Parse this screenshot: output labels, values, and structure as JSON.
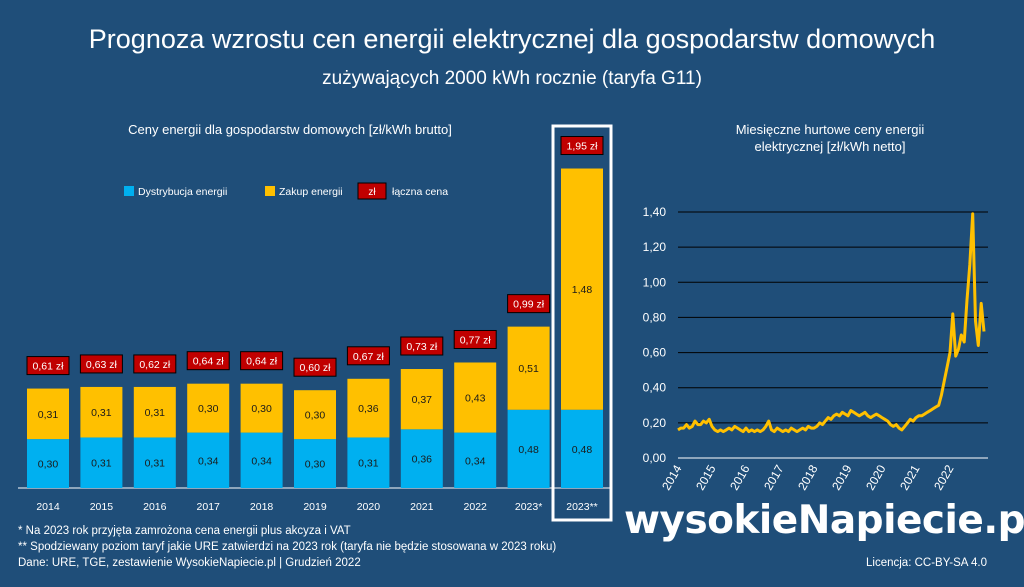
{
  "title": "Prognoza wzrostu cen energii elektrycznej dla gospodarstw domowych",
  "subtitle": "zużywających 2000 kWh rocznie (taryfa G11)",
  "colors": {
    "background": "#1f4e79",
    "distribution": "#00b0f0",
    "purchase": "#ffc000",
    "total_label_bg": "#c00000",
    "line": "#ffc000"
  },
  "chart_data": [
    {
      "type": "bar",
      "title": "Ceny energii dla gospodarstw domowych [zł/kWh brutto]",
      "legend": {
        "placement": "top-left",
        "entries": [
          "Dystrybucja energii",
          "Zakup energii",
          "zł",
          "łączna cena"
        ]
      },
      "categories": [
        "2014",
        "2015",
        "2016",
        "2017",
        "2018",
        "2019",
        "2020",
        "2021",
        "2022",
        "2023*",
        "2023**"
      ],
      "series": [
        {
          "name": "Dystrybucja energii",
          "values": [
            0.3,
            0.31,
            0.31,
            0.34,
            0.34,
            0.3,
            0.31,
            0.36,
            0.34,
            0.48,
            0.48
          ],
          "labels": [
            "0,30",
            "0,31",
            "0,31",
            "0,34",
            "0,34",
            "0,30",
            "0,31",
            "0,36",
            "0,34",
            "0,48",
            "0,48"
          ]
        },
        {
          "name": "Zakup energii",
          "values": [
            0.31,
            0.31,
            0.31,
            0.3,
            0.3,
            0.3,
            0.36,
            0.37,
            0.43,
            0.51,
            1.48
          ],
          "labels": [
            "0,31",
            "0,31",
            "0,31",
            "0,30",
            "0,30",
            "0,30",
            "0,36",
            "0,37",
            "0,43",
            "0,51",
            "1,48"
          ]
        }
      ],
      "totals": [
        0.61,
        0.63,
        0.62,
        0.64,
        0.64,
        0.6,
        0.67,
        0.73,
        0.77,
        0.99,
        1.95
      ],
      "total_labels": [
        "0,61 zł",
        "0,63 zł",
        "0,62 zł",
        "0,64 zł",
        "0,64 zł",
        "0,60 zł",
        "0,67 zł",
        "0,73 zł",
        "0,77 zł",
        "0,99 zł",
        "1,95 zł"
      ],
      "highlighted_category": "2023**",
      "stacked": true
    },
    {
      "type": "line",
      "title_lines": [
        "Miesięczne hurtowe ceny energii",
        "elektrycznej [zł/kWh netto]"
      ],
      "ylim": [
        0,
        1.4
      ],
      "yticks": [
        "0,00",
        "0,20",
        "0,40",
        "0,60",
        "0,80",
        "1,00",
        "1,20",
        "1,40"
      ],
      "xticks": [
        "2014",
        "2015",
        "2016",
        "2017",
        "2018",
        "2019",
        "2020",
        "2021",
        "2022"
      ],
      "grid": "horizontal",
      "x_start": "2014-01",
      "series": [
        {
          "values": [
            0.16,
            0.17,
            0.17,
            0.19,
            0.17,
            0.18,
            0.21,
            0.19,
            0.19,
            0.21,
            0.2,
            0.22,
            0.18,
            0.16,
            0.15,
            0.16,
            0.15,
            0.16,
            0.17,
            0.16,
            0.18,
            0.17,
            0.16,
            0.15,
            0.17,
            0.15,
            0.16,
            0.15,
            0.16,
            0.15,
            0.16,
            0.18,
            0.21,
            0.16,
            0.15,
            0.17,
            0.16,
            0.15,
            0.16,
            0.15,
            0.17,
            0.16,
            0.15,
            0.16,
            0.17,
            0.16,
            0.18,
            0.17,
            0.17,
            0.18,
            0.2,
            0.19,
            0.21,
            0.23,
            0.22,
            0.24,
            0.25,
            0.24,
            0.26,
            0.25,
            0.24,
            0.27,
            0.26,
            0.25,
            0.24,
            0.25,
            0.26,
            0.24,
            0.23,
            0.24,
            0.25,
            0.24,
            0.23,
            0.22,
            0.21,
            0.19,
            0.18,
            0.19,
            0.17,
            0.16,
            0.18,
            0.2,
            0.22,
            0.21,
            0.23,
            0.24,
            0.24,
            0.25,
            0.26,
            0.27,
            0.28,
            0.29,
            0.3,
            0.36,
            0.44,
            0.52,
            0.6,
            0.82,
            0.58,
            0.62,
            0.7,
            0.66,
            0.9,
            1.1,
            1.39,
            0.78,
            0.64,
            0.88,
            0.72
          ]
        }
      ]
    }
  ],
  "footnotes": [
    "* Na 2023 rok przyjęta zamrożona cena energii plus akcyza i VAT",
    "** Spodziewany poziom taryf jakie URE zatwierdzi na 2023 rok (taryfa nie będzie stosowana w 2023 roku)",
    "Dane: URE, TGE, zestawienie WysokieNapiecie.pl  | Grudzień 2022"
  ],
  "logo_text": "wysokieNapiecie.pl",
  "license": "Licencja: CC-BY-SA 4.0"
}
